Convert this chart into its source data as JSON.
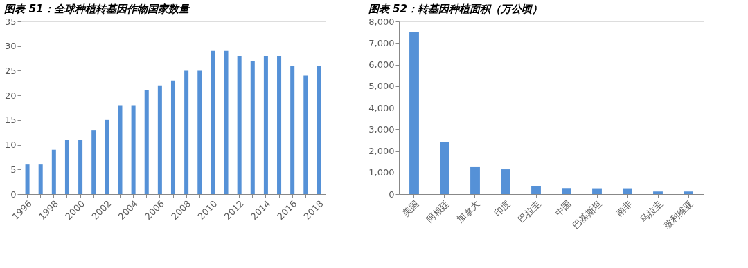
{
  "chart_data": [
    {
      "type": "bar",
      "title": "图表 51：全球种植转基因作物国家数量",
      "categories": [
        "1996",
        null,
        "1998",
        null,
        "2000",
        null,
        "2002",
        null,
        "2004",
        null,
        "2006",
        null,
        "2008",
        null,
        "2010",
        null,
        "2012",
        null,
        "2014",
        null,
        "2016",
        null,
        "2018"
      ],
      "values": [
        6,
        6,
        9,
        11,
        11,
        13,
        15,
        18,
        18,
        21,
        22,
        23,
        25,
        25,
        29,
        29,
        28,
        27,
        28,
        28,
        26,
        24,
        26
      ],
      "color": "#5591d7",
      "ylim": [
        0,
        35
      ],
      "yticks": [
        0,
        5,
        10,
        15,
        20,
        25,
        30,
        35
      ],
      "grid": false
    },
    {
      "type": "bar",
      "title": "图表 52：转基因种植面积（万公顷）",
      "categories": [
        "美国",
        "阿根廷",
        "加拿大",
        "印度",
        "巴拉圭",
        "中国",
        "巴基斯坦",
        "南非",
        "乌拉圭",
        "玻利维亚"
      ],
      "values": [
        7500,
        2400,
        1250,
        1150,
        370,
        280,
        270,
        270,
        120,
        120
      ],
      "color": "#5591d7",
      "ylim": [
        0,
        8000
      ],
      "yticks": [
        {
          "value": 0,
          "label": "0"
        },
        {
          "value": 1000,
          "label": "1,000"
        },
        {
          "value": 2000,
          "label": "2,000"
        },
        {
          "value": 3000,
          "label": "3,000"
        },
        {
          "value": 4000,
          "label": "4,000"
        },
        {
          "value": 5000,
          "label": "5,000"
        },
        {
          "value": 6000,
          "label": "6,000"
        },
        {
          "value": 7000,
          "label": "7,000"
        },
        {
          "value": 8000,
          "label": "8,000"
        }
      ],
      "grid": false
    }
  ]
}
